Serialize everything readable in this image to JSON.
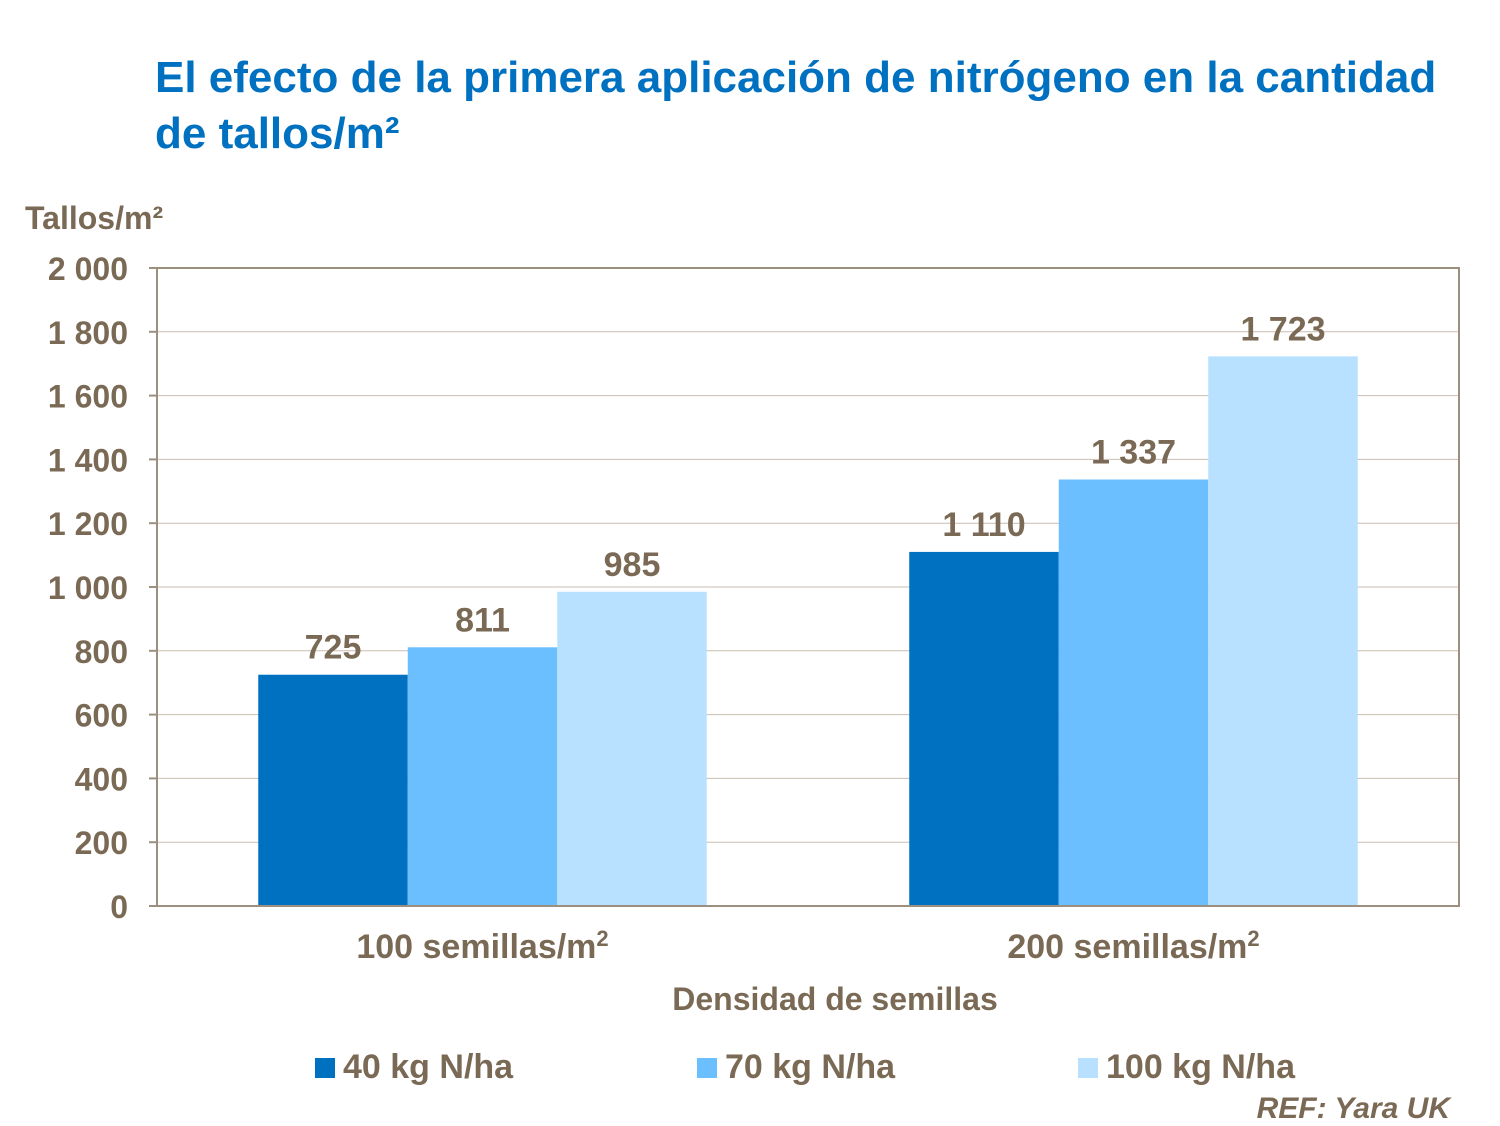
{
  "chart_data": {
    "type": "bar",
    "title": "El efecto de la primera aplicación de nitrógeno en la cantidad de tallos/m²",
    "ylabel": "Tallos/m²",
    "xlabel": "Densidad de semillas",
    "categories": [
      "100 semillas/m²",
      "200 semillas/m²"
    ],
    "series": [
      {
        "name": "40 kg N/ha",
        "values": [
          725,
          1110
        ],
        "labels": [
          "725",
          "1 110"
        ],
        "color": "#0070c0"
      },
      {
        "name": "70 kg N/ha",
        "values": [
          811,
          1337
        ],
        "labels": [
          "811",
          "1 337"
        ],
        "color": "#6bbfff"
      },
      {
        "name": "100 kg N/ha",
        "values": [
          985,
          1723
        ],
        "labels": [
          "985",
          "1 723"
        ],
        "color": "#b8e0ff"
      }
    ],
    "ylim": [
      0,
      2000
    ],
    "yticks": [
      0,
      200,
      400,
      600,
      800,
      1000,
      1200,
      1400,
      1600,
      1800,
      2000
    ],
    "ytick_labels": [
      "0",
      "200",
      "400",
      "600",
      "800",
      "1 000",
      "1 200",
      "1 400",
      "1 600",
      "1 800",
      "2 000"
    ],
    "grid": true,
    "legend_position": "bottom",
    "source": "REF: Yara UK",
    "title_color": "#0070c0",
    "text_color": "#7a6a55"
  }
}
